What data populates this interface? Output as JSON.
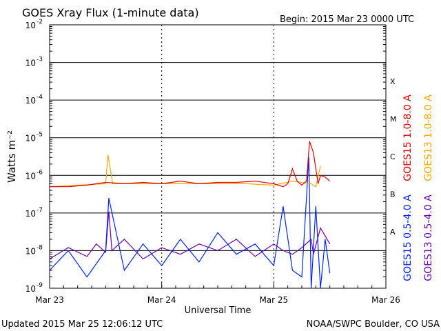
{
  "header": {
    "title": "GOES Xray Flux (1-minute data)",
    "begin": "Begin:  2015 Mar 23 0000 UTC"
  },
  "footer": {
    "updated": "Updated 2015 Mar 25 12:06:12 UTC",
    "credit": "NOAA/SWPC Boulder, CO USA"
  },
  "colors": {
    "goes15_long": "#dd0000",
    "goes13_long": "#ffa500",
    "goes15_short": "#0022ff",
    "goes13_short": "#6a00a8",
    "grid": "#000000"
  },
  "chart_data": {
    "type": "line",
    "title": "GOES Xray Flux (1-minute data)",
    "xlabel": "Universal Time",
    "ylabel": "Watts m⁻²",
    "y_scale": "log",
    "ylim": [
      1e-09,
      0.01
    ],
    "xlim": [
      "2015-03-23 00:00",
      "2015-03-26 00:00"
    ],
    "x_ticks": [
      "Mar 23",
      "Mar 24",
      "Mar 25",
      "Mar 26"
    ],
    "y_ticks": [
      {
        "value": 0.01,
        "base": "10",
        "exp": "-2"
      },
      {
        "value": 0.001,
        "base": "10",
        "exp": "-3"
      },
      {
        "value": 0.0001,
        "base": "10",
        "exp": "-4"
      },
      {
        "value": 1e-05,
        "base": "10",
        "exp": "-5"
      },
      {
        "value": 1e-06,
        "base": "10",
        "exp": "-6"
      },
      {
        "value": 1e-07,
        "base": "10",
        "exp": "-7"
      },
      {
        "value": 1e-08,
        "base": "10",
        "exp": "-8"
      },
      {
        "value": 1e-09,
        "base": "10",
        "exp": "-9"
      }
    ],
    "flare_classes": [
      {
        "label": "X",
        "value": 0.000316
      },
      {
        "label": "M",
        "value": 3.16e-05
      },
      {
        "label": "C",
        "value": 3.16e-06
      },
      {
        "label": "B",
        "value": 3.16e-07
      },
      {
        "label": "A",
        "value": 3.16e-08
      }
    ],
    "grid": true,
    "legend_position": "right, vertical",
    "series": [
      {
        "name": "GOES13 0.5-4.0 A",
        "color": "#6a00a8",
        "x": [
          "2015-03-23 00:00",
          "2015-03-23 04:00",
          "2015-03-23 08:00",
          "2015-03-23 10:00",
          "2015-03-23 12:00",
          "2015-03-23 12:40",
          "2015-03-23 13:20",
          "2015-03-23 16:00",
          "2015-03-23 20:00",
          "2015-03-24 00:00",
          "2015-03-24 04:00",
          "2015-03-24 08:00",
          "2015-03-24 12:00",
          "2015-03-24 16:00",
          "2015-03-24 20:00",
          "2015-03-25 00:00",
          "2015-03-25 02:00",
          "2015-03-25 04:00",
          "2015-03-25 06:00",
          "2015-03-25 08:00",
          "2015-03-25 08:30",
          "2015-03-25 10:00",
          "2015-03-25 12:00"
        ],
        "y": [
          6e-09,
          1.2e-08,
          7e-09,
          1.5e-08,
          9e-09,
          1.1e-07,
          1e-08,
          2e-08,
          6e-09,
          1.2e-08,
          8e-09,
          1.5e-08,
          1e-08,
          2e-08,
          7e-09,
          1.5e-08,
          1e-08,
          8e-09,
          1.2e-08,
          2e-08,
          8e-09,
          4e-08,
          1.5e-08
        ]
      },
      {
        "name": "GOES15 0.5-4.0 A",
        "color": "#0022ff",
        "x": [
          "2015-03-23 00:00",
          "2015-03-23 04:00",
          "2015-03-23 08:00",
          "2015-03-23 12:00",
          "2015-03-23 12:40",
          "2015-03-23 16:00",
          "2015-03-23 20:00",
          "2015-03-24 00:00",
          "2015-03-24 04:00",
          "2015-03-24 08:00",
          "2015-03-24 12:00",
          "2015-03-24 16:00",
          "2015-03-24 20:00",
          "2015-03-25 00:00",
          "2015-03-25 02:00",
          "2015-03-25 04:00",
          "2015-03-25 06:00",
          "2015-03-25 07:30",
          "2015-03-25 08:00",
          "2015-03-25 09:00",
          "2015-03-25 10:00",
          "2015-03-25 11:00",
          "2015-03-25 12:00"
        ],
        "y": [
          3e-09,
          1e-08,
          2e-09,
          1e-08,
          2.5e-07,
          3e-09,
          1.5e-08,
          4e-09,
          2e-08,
          5e-09,
          3e-08,
          8e-09,
          1.5e-08,
          4e-09,
          1.5e-07,
          3e-09,
          2e-09,
          3e-06,
          1e-09,
          1.5e-07,
          1e-09,
          2e-08,
          2.5e-09
        ]
      },
      {
        "name": "GOES13 1.0-8.0 A",
        "color": "#ffa500",
        "x": [
          "2015-03-23 00:00",
          "2015-03-23 06:00",
          "2015-03-23 12:00",
          "2015-03-23 12:30",
          "2015-03-23 13:30",
          "2015-03-23 18:00",
          "2015-03-24 00:00",
          "2015-03-24 06:00",
          "2015-03-24 12:00",
          "2015-03-24 18:00",
          "2015-03-25 00:00",
          "2015-03-25 04:00",
          "2015-03-25 08:00",
          "2015-03-25 09:00",
          "2015-03-25 10:00"
        ],
        "y": [
          5e-07,
          5.5e-07,
          6e-07,
          3.5e-06,
          6e-07,
          6e-07,
          6e-07,
          6e-07,
          6e-07,
          6e-07,
          5.5e-07,
          7e-07,
          6e-07,
          5e-07,
          1.8e-06
        ]
      },
      {
        "name": "GOES15 1.0-8.0 A",
        "color": "#dd0000",
        "x": [
          "2015-03-23 00:00",
          "2015-03-23 04:00",
          "2015-03-23 08:00",
          "2015-03-23 12:00",
          "2015-03-23 16:00",
          "2015-03-23 20:00",
          "2015-03-24 00:00",
          "2015-03-24 04:00",
          "2015-03-24 08:00",
          "2015-03-24 12:00",
          "2015-03-24 16:00",
          "2015-03-24 20:00",
          "2015-03-25 00:00",
          "2015-03-25 02:00",
          "2015-03-25 03:00",
          "2015-03-25 04:00",
          "2015-03-25 05:00",
          "2015-03-25 06:00",
          "2015-03-25 07:00",
          "2015-03-25 07:40",
          "2015-03-25 08:30",
          "2015-03-25 09:00",
          "2015-03-25 09:30",
          "2015-03-25 10:00",
          "2015-03-25 11:00",
          "2015-03-25 12:00"
        ],
        "y": [
          5e-07,
          5e-07,
          5.5e-07,
          6.5e-07,
          6e-07,
          6.5e-07,
          6e-07,
          7e-07,
          6e-07,
          6.5e-07,
          6.5e-07,
          7e-07,
          6e-07,
          5e-07,
          6e-07,
          1.5e-06,
          7e-07,
          5.5e-07,
          7e-07,
          8e-06,
          4e-06,
          1.5e-06,
          6e-07,
          1e-06,
          9e-07,
          7e-07
        ]
      }
    ]
  }
}
